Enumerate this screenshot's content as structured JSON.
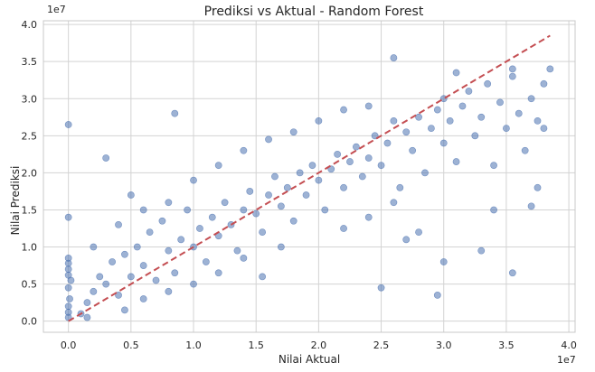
{
  "chart_data": {
    "type": "scatter",
    "title": "Prediksi vs Aktual - Random Forest",
    "xlabel": "Nilai Aktual",
    "ylabel": "Nilai Prediksi",
    "x_offset_label": "1e7",
    "y_offset_label": "1e7",
    "xlim": [
      -0.2,
      4.05
    ],
    "ylim": [
      -0.15,
      4.05
    ],
    "x_ticks": [
      0.0,
      0.5,
      1.0,
      1.5,
      2.0,
      2.5,
      3.0,
      3.5,
      4.0
    ],
    "x_tick_labels": [
      "0.0",
      "0.5",
      "1.0",
      "1.5",
      "2.0",
      "2.5",
      "3.0",
      "3.5",
      "4.0"
    ],
    "y_ticks": [
      0.0,
      0.5,
      1.0,
      1.5,
      2.0,
      2.5,
      3.0,
      3.5,
      4.0
    ],
    "y_tick_labels": [
      "0.0",
      "0.5",
      "1.0",
      "1.5",
      "2.0",
      "2.5",
      "3.0",
      "3.5",
      "4.0"
    ],
    "grid": true,
    "point_color": "#4c72b0",
    "reference_line": {
      "x": [
        0.0,
        3.85
      ],
      "y": [
        0.0,
        3.85
      ],
      "color": "#c44e52",
      "style": "dashed"
    },
    "points": [
      [
        0.0,
        0.05
      ],
      [
        0.0,
        0.12
      ],
      [
        0.01,
        0.3
      ],
      [
        0.0,
        0.45
      ],
      [
        0.0,
        0.62
      ],
      [
        0.0,
        0.7
      ],
      [
        0.0,
        0.78
      ],
      [
        0.0,
        0.85
      ],
      [
        0.0,
        1.4
      ],
      [
        0.0,
        2.65
      ],
      [
        0.0,
        0.2
      ],
      [
        0.02,
        0.55
      ],
      [
        0.1,
        0.1
      ],
      [
        0.15,
        0.25
      ],
      [
        0.2,
        0.4
      ],
      [
        0.25,
        0.6
      ],
      [
        0.3,
        0.5
      ],
      [
        0.35,
        0.8
      ],
      [
        0.4,
        0.35
      ],
      [
        0.45,
        0.9
      ],
      [
        0.5,
        0.6
      ],
      [
        0.55,
        1.0
      ],
      [
        0.6,
        0.75
      ],
      [
        0.65,
        1.2
      ],
      [
        0.7,
        0.55
      ],
      [
        0.75,
        1.35
      ],
      [
        0.8,
        0.95
      ],
      [
        0.85,
        0.65
      ],
      [
        0.9,
        1.1
      ],
      [
        0.95,
        1.5
      ],
      [
        1.0,
        1.0
      ],
      [
        1.05,
        1.25
      ],
      [
        1.1,
        0.8
      ],
      [
        1.15,
        1.4
      ],
      [
        1.2,
        1.15
      ],
      [
        1.25,
        1.6
      ],
      [
        1.3,
        1.3
      ],
      [
        1.35,
        0.95
      ],
      [
        1.4,
        1.5
      ],
      [
        1.45,
        1.75
      ],
      [
        1.5,
        1.45
      ],
      [
        1.55,
        1.2
      ],
      [
        1.6,
        1.7
      ],
      [
        1.65,
        1.95
      ],
      [
        1.7,
        1.55
      ],
      [
        1.75,
        1.8
      ],
      [
        1.8,
        1.35
      ],
      [
        1.85,
        2.0
      ],
      [
        1.9,
        1.7
      ],
      [
        1.95,
        2.1
      ],
      [
        2.0,
        1.9
      ],
      [
        2.05,
        1.5
      ],
      [
        2.1,
        2.05
      ],
      [
        2.15,
        2.25
      ],
      [
        2.2,
        1.8
      ],
      [
        2.25,
        2.15
      ],
      [
        2.3,
        2.35
      ],
      [
        2.35,
        1.95
      ],
      [
        2.4,
        2.2
      ],
      [
        2.45,
        2.5
      ],
      [
        2.5,
        2.1
      ],
      [
        2.55,
        2.4
      ],
      [
        2.6,
        2.7
      ],
      [
        2.65,
        1.8
      ],
      [
        2.7,
        2.55
      ],
      [
        2.75,
        2.3
      ],
      [
        2.8,
        2.75
      ],
      [
        2.85,
        2.0
      ],
      [
        2.9,
        2.6
      ],
      [
        2.95,
        2.85
      ],
      [
        3.0,
        2.4
      ],
      [
        3.0,
        3.0
      ],
      [
        3.05,
        2.7
      ],
      [
        3.1,
        2.15
      ],
      [
        3.15,
        2.9
      ],
      [
        3.2,
        3.1
      ],
      [
        3.25,
        2.5
      ],
      [
        3.3,
        2.75
      ],
      [
        3.35,
        3.2
      ],
      [
        3.4,
        2.1
      ],
      [
        3.45,
        2.95
      ],
      [
        3.5,
        2.6
      ],
      [
        3.55,
        3.3
      ],
      [
        3.6,
        2.8
      ],
      [
        3.65,
        2.3
      ],
      [
        3.7,
        3.0
      ],
      [
        3.75,
        2.7
      ],
      [
        3.8,
        3.2
      ],
      [
        3.85,
        3.4
      ],
      [
        3.8,
        2.6
      ],
      [
        0.3,
        2.2
      ],
      [
        0.5,
        1.7
      ],
      [
        0.85,
        2.8
      ],
      [
        1.55,
        0.6
      ],
      [
        2.5,
        0.45
      ],
      [
        2.95,
        0.35
      ],
      [
        3.0,
        0.8
      ],
      [
        3.55,
        0.65
      ],
      [
        3.3,
        0.95
      ],
      [
        3.4,
        1.5
      ],
      [
        3.7,
        1.55
      ],
      [
        3.75,
        1.8
      ],
      [
        2.8,
        1.2
      ],
      [
        2.6,
        3.55
      ],
      [
        3.1,
        3.35
      ],
      [
        3.55,
        3.4
      ],
      [
        0.15,
        0.05
      ],
      [
        0.45,
        0.15
      ],
      [
        0.6,
        0.3
      ],
      [
        0.8,
        0.4
      ],
      [
        1.0,
        0.5
      ],
      [
        1.2,
        0.65
      ],
      [
        1.4,
        0.85
      ],
      [
        1.7,
        1.0
      ],
      [
        0.2,
        1.0
      ],
      [
        0.4,
        1.3
      ],
      [
        0.6,
        1.5
      ],
      [
        0.8,
        1.6
      ],
      [
        1.0,
        1.9
      ],
      [
        1.2,
        2.1
      ],
      [
        1.4,
        2.3
      ],
      [
        1.6,
        2.45
      ],
      [
        1.8,
        2.55
      ],
      [
        2.0,
        2.7
      ],
      [
        2.2,
        2.85
      ],
      [
        2.4,
        2.9
      ],
      [
        2.2,
        1.25
      ],
      [
        2.4,
        1.4
      ],
      [
        2.6,
        1.6
      ],
      [
        2.7,
        1.1
      ]
    ]
  }
}
